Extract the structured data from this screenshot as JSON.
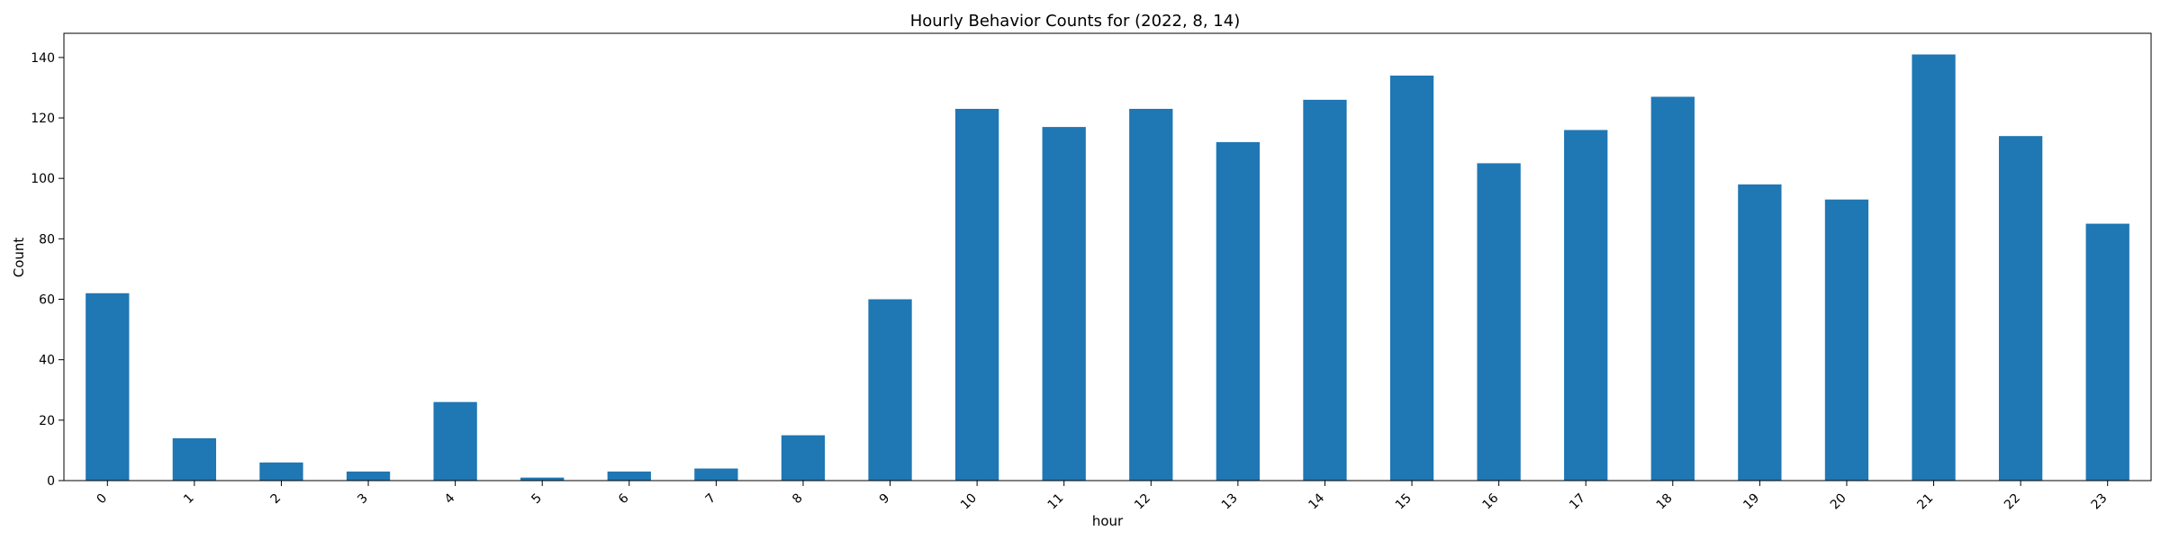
{
  "chart_data": {
    "type": "bar",
    "title": "Hourly Behavior Counts for (2022, 8, 14)",
    "xlabel": "hour",
    "ylabel": "Count",
    "categories": [
      "0",
      "1",
      "2",
      "3",
      "4",
      "5",
      "6",
      "7",
      "8",
      "9",
      "10",
      "11",
      "12",
      "13",
      "14",
      "15",
      "16",
      "17",
      "18",
      "19",
      "20",
      "21",
      "22",
      "23"
    ],
    "values": [
      62,
      14,
      6,
      3,
      26,
      1,
      3,
      4,
      15,
      60,
      123,
      117,
      123,
      112,
      126,
      134,
      105,
      116,
      127,
      98,
      93,
      141,
      114,
      85
    ],
    "ylim": [
      0,
      148
    ],
    "yticks": [
      0,
      20,
      40,
      60,
      80,
      100,
      120,
      140
    ],
    "bar_color": "#1f77b4",
    "grid": false,
    "legend": "none"
  }
}
